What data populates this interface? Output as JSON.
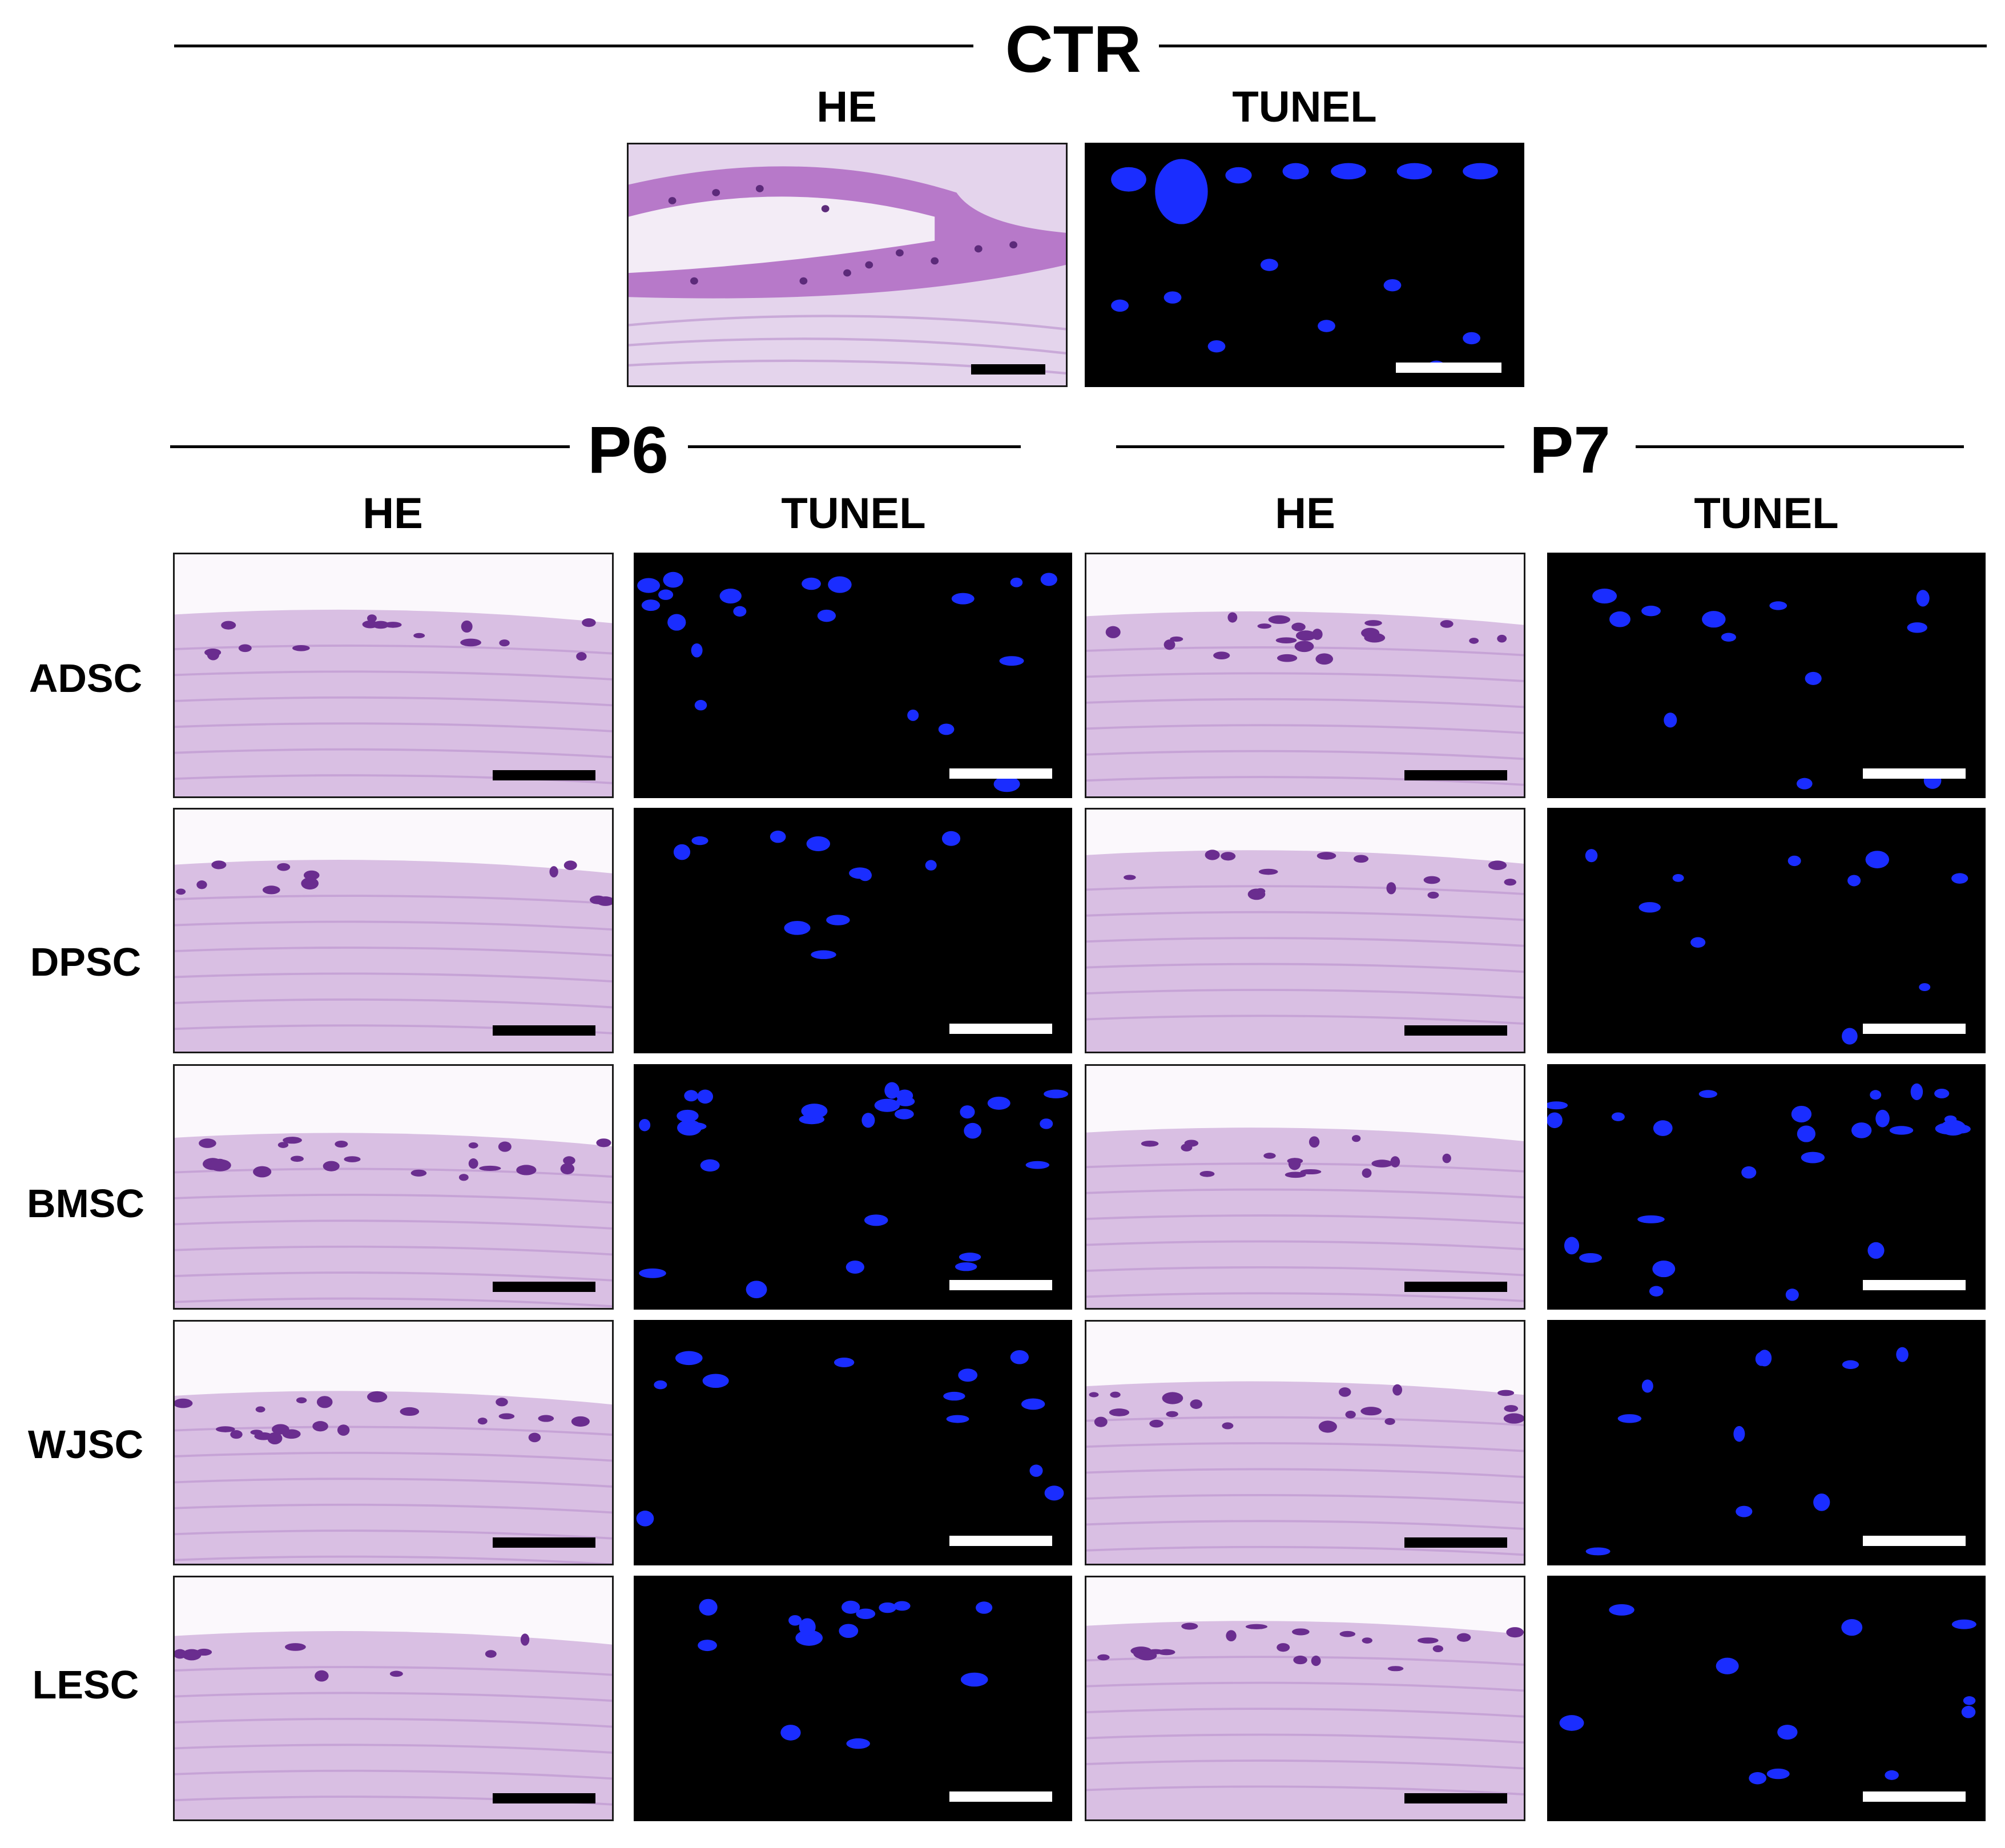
{
  "sections": {
    "ctr": "CTR",
    "p6": "P6",
    "p7": "P7"
  },
  "columns": {
    "he": "HE",
    "tunel": "TUNEL"
  },
  "rows": [
    "ADSC",
    "DPSC",
    "BMSC",
    "WJSC",
    "LESC"
  ],
  "stains": {
    "he_tissue": "#d9bfe3",
    "he_cells": "#6a2d8f",
    "tunel_nuclei": "#1a2dff"
  }
}
